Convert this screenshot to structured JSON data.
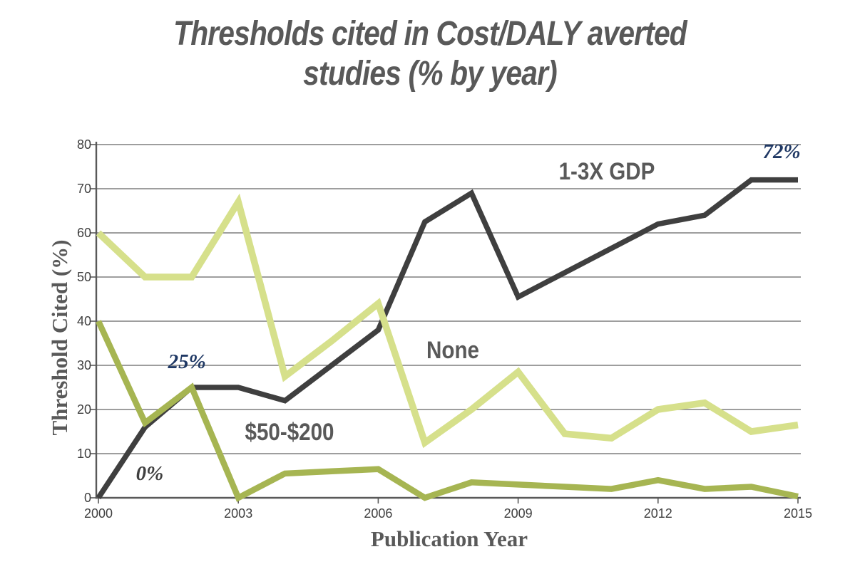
{
  "title": {
    "full": "Thresholds cited in Cost/DALY averted studies (% by year)",
    "line1": "Thresholds cited in Cost/DALY averted",
    "line2": "studies (% by year)"
  },
  "colors": {
    "title_gray": "#595959",
    "axis_gray": "#595959",
    "tick_text": "#404040",
    "navy_annotation": "#1f3864"
  },
  "chart_data": {
    "type": "line",
    "title": "Thresholds cited in Cost/DALY averted studies (% by year)",
    "xlabel": "Publication Year",
    "ylabel": "Threshold Cited (%)",
    "x": [
      2000,
      2001,
      2002,
      2003,
      2004,
      2005,
      2006,
      2007,
      2008,
      2009,
      2010,
      2011,
      2012,
      2013,
      2014,
      2015
    ],
    "x_ticks": [
      2000,
      2003,
      2006,
      2009,
      2012,
      2015
    ],
    "y_ticks": [
      0,
      10,
      20,
      30,
      40,
      50,
      60,
      70,
      80
    ],
    "ylim": [
      0,
      80
    ],
    "grid": "horizontal",
    "grid_color": "#7f7f7f",
    "legend": "inline-labels",
    "series": [
      {
        "name": "1-3X GDP",
        "color": "#3f3f3f",
        "values": [
          0,
          16,
          25,
          25,
          22,
          30,
          38,
          62.5,
          69,
          45.5,
          51,
          56.5,
          62,
          64,
          72,
          72
        ]
      },
      {
        "name": "$50-$200",
        "color": "#a6b552",
        "values": [
          40,
          17,
          25,
          0,
          5.5,
          6,
          6.5,
          0,
          3.5,
          3,
          2.5,
          2,
          4,
          2,
          2.5,
          0.3
        ]
      },
      {
        "name": "None",
        "color": "#d6e08b",
        "values": [
          60,
          50,
          50,
          67,
          27.5,
          35.5,
          44,
          12.5,
          20,
          28.5,
          14.5,
          13.5,
          20,
          21.5,
          15,
          16.5
        ]
      }
    ],
    "annotations": [
      {
        "text": "72%",
        "x": 2014.65,
        "y": 78,
        "color": "#1f3864",
        "kind": "value"
      },
      {
        "text": "25%",
        "x": 2001.9,
        "y": 30.5,
        "color": "#1f3864",
        "kind": "value"
      },
      {
        "text": "0%",
        "x": 2001.1,
        "y": 5.2,
        "color": "#404040",
        "kind": "value"
      },
      {
        "text": "1-3X GDP",
        "x": 2010.9,
        "y": 73.5,
        "color": "#595959",
        "kind": "series"
      },
      {
        "text": "None",
        "x": 2007.6,
        "y": 33,
        "color": "#595959",
        "kind": "series"
      },
      {
        "text": "$50-$200",
        "x": 2004.1,
        "y": 14.5,
        "color": "#595959",
        "kind": "series"
      }
    ]
  }
}
